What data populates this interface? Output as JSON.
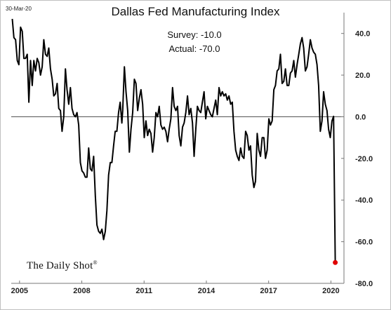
{
  "chart_data": {
    "type": "line",
    "date_stamp": "30-Mar-20",
    "title": "Dallas Fed Manufacturing Index",
    "xlim": [
      2004.6,
      2020.9
    ],
    "ylim": [
      -80,
      50
    ],
    "x_ticks": [
      2005,
      2008,
      2011,
      2014,
      2017,
      2020
    ],
    "x_tick_labels": [
      "2005",
      "2008",
      "2011",
      "2014",
      "2017",
      "2020"
    ],
    "y_ticks": [
      40,
      20,
      0,
      -20,
      -40,
      -60,
      -80
    ],
    "y_tick_labels": [
      "40.0",
      "20.0",
      "0.0",
      "-20.0",
      "-40.0",
      "-60.0",
      "-80.0"
    ],
    "zero_line": true,
    "grid": false,
    "annotations": [
      {
        "label": "Survey:",
        "value": "-10.0"
      },
      {
        "label": "Actual:",
        "value": "-70.0"
      }
    ],
    "highlight_point": {
      "x": 2020.21,
      "y": -70.0,
      "color": "#e00000"
    },
    "line_color": "#000000",
    "series": [
      {
        "points": [
          [
            2004.65,
            47
          ],
          [
            2004.73,
            38
          ],
          [
            2004.81,
            37
          ],
          [
            2004.89,
            27
          ],
          [
            2004.97,
            25
          ],
          [
            2005.05,
            43
          ],
          [
            2005.13,
            41
          ],
          [
            2005.21,
            28
          ],
          [
            2005.29,
            28
          ],
          [
            2005.37,
            30
          ],
          [
            2005.45,
            7
          ],
          [
            2005.53,
            27
          ],
          [
            2005.61,
            15
          ],
          [
            2005.69,
            27
          ],
          [
            2005.77,
            22
          ],
          [
            2005.85,
            28
          ],
          [
            2005.93,
            26
          ],
          [
            2006.01,
            20
          ],
          [
            2006.09,
            24
          ],
          [
            2006.17,
            37
          ],
          [
            2006.25,
            30
          ],
          [
            2006.33,
            29
          ],
          [
            2006.41,
            33
          ],
          [
            2006.49,
            23
          ],
          [
            2006.57,
            18
          ],
          [
            2006.65,
            10
          ],
          [
            2006.73,
            11
          ],
          [
            2006.81,
            16
          ],
          [
            2006.89,
            4
          ],
          [
            2006.97,
            3
          ],
          [
            2007.05,
            -7
          ],
          [
            2007.13,
            0
          ],
          [
            2007.21,
            23
          ],
          [
            2007.29,
            13
          ],
          [
            2007.37,
            6
          ],
          [
            2007.45,
            14
          ],
          [
            2007.53,
            4
          ],
          [
            2007.61,
            1
          ],
          [
            2007.69,
            0
          ],
          [
            2007.77,
            2
          ],
          [
            2007.85,
            -4
          ],
          [
            2007.93,
            -22
          ],
          [
            2008.01,
            -26
          ],
          [
            2008.09,
            -27
          ],
          [
            2008.17,
            -29
          ],
          [
            2008.25,
            -29
          ],
          [
            2008.33,
            -15
          ],
          [
            2008.41,
            -25
          ],
          [
            2008.49,
            -26
          ],
          [
            2008.57,
            -19
          ],
          [
            2008.65,
            -38
          ],
          [
            2008.73,
            -52
          ],
          [
            2008.81,
            -55
          ],
          [
            2008.89,
            -56
          ],
          [
            2008.97,
            -54
          ],
          [
            2009.05,
            -59
          ],
          [
            2009.13,
            -55
          ],
          [
            2009.21,
            -45
          ],
          [
            2009.29,
            -28
          ],
          [
            2009.37,
            -22
          ],
          [
            2009.45,
            -22
          ],
          [
            2009.53,
            -14
          ],
          [
            2009.61,
            -7
          ],
          [
            2009.69,
            -7
          ],
          [
            2009.77,
            2
          ],
          [
            2009.85,
            7
          ],
          [
            2009.93,
            -3
          ],
          [
            2009.97,
            3
          ],
          [
            2010.05,
            24
          ],
          [
            2010.13,
            12
          ],
          [
            2010.21,
            3
          ],
          [
            2010.29,
            -17
          ],
          [
            2010.37,
            -6
          ],
          [
            2010.45,
            2
          ],
          [
            2010.53,
            18
          ],
          [
            2010.61,
            16
          ],
          [
            2010.69,
            3
          ],
          [
            2010.77,
            9
          ],
          [
            2010.85,
            13
          ],
          [
            2010.93,
            6
          ],
          [
            2011.01,
            -10
          ],
          [
            2011.09,
            -2
          ],
          [
            2011.17,
            -9
          ],
          [
            2011.25,
            -6
          ],
          [
            2011.33,
            -8
          ],
          [
            2011.41,
            -17
          ],
          [
            2011.49,
            -10
          ],
          [
            2011.57,
            2
          ],
          [
            2011.65,
            0
          ],
          [
            2011.73,
            5
          ],
          [
            2011.81,
            -4
          ],
          [
            2011.89,
            -6
          ],
          [
            2011.97,
            -5
          ],
          [
            2012.05,
            -7
          ],
          [
            2012.13,
            -12
          ],
          [
            2012.21,
            -6
          ],
          [
            2012.29,
            -1
          ],
          [
            2012.37,
            14
          ],
          [
            2012.45,
            5
          ],
          [
            2012.53,
            3
          ],
          [
            2012.61,
            5
          ],
          [
            2012.69,
            -9
          ],
          [
            2012.77,
            -14
          ],
          [
            2012.85,
            -5
          ],
          [
            2012.93,
            -3
          ],
          [
            2013.01,
            2
          ],
          [
            2013.09,
            10
          ],
          [
            2013.17,
            1
          ],
          [
            2013.25,
            4
          ],
          [
            2013.33,
            -3
          ],
          [
            2013.41,
            -19
          ],
          [
            2013.49,
            -6
          ],
          [
            2013.57,
            5
          ],
          [
            2013.65,
            3
          ],
          [
            2013.73,
            2
          ],
          [
            2013.81,
            7
          ],
          [
            2013.89,
            12
          ],
          [
            2013.97,
            -1
          ],
          [
            2014.05,
            5
          ],
          [
            2014.13,
            3
          ],
          [
            2014.21,
            1
          ],
          [
            2014.29,
            0
          ],
          [
            2014.37,
            4
          ],
          [
            2014.45,
            8
          ],
          [
            2014.53,
            1
          ],
          [
            2014.61,
            14
          ],
          [
            2014.69,
            10
          ],
          [
            2014.77,
            12
          ],
          [
            2014.85,
            10
          ],
          [
            2014.93,
            11
          ],
          [
            2015.01,
            8
          ],
          [
            2015.09,
            10
          ],
          [
            2015.17,
            6
          ],
          [
            2015.25,
            7
          ],
          [
            2015.33,
            -7
          ],
          [
            2015.41,
            -16
          ],
          [
            2015.49,
            -19
          ],
          [
            2015.57,
            -21
          ],
          [
            2015.65,
            -15
          ],
          [
            2015.73,
            -19
          ],
          [
            2015.81,
            -20
          ],
          [
            2015.89,
            -7
          ],
          [
            2015.97,
            -9
          ],
          [
            2016.05,
            -16
          ],
          [
            2016.13,
            -14
          ],
          [
            2016.21,
            -28
          ],
          [
            2016.29,
            -34
          ],
          [
            2016.37,
            -31
          ],
          [
            2016.45,
            -8
          ],
          [
            2016.53,
            -16
          ],
          [
            2016.61,
            -19
          ],
          [
            2016.69,
            -10
          ],
          [
            2016.77,
            -10
          ],
          [
            2016.85,
            -20
          ],
          [
            2016.93,
            -16
          ],
          [
            2017.01,
            -1
          ],
          [
            2017.09,
            -4
          ],
          [
            2017.17,
            -2
          ],
          [
            2017.25,
            13
          ],
          [
            2017.33,
            15
          ],
          [
            2017.41,
            22
          ],
          [
            2017.49,
            23
          ],
          [
            2017.57,
            30
          ],
          [
            2017.65,
            16
          ],
          [
            2017.73,
            17
          ],
          [
            2017.81,
            23
          ],
          [
            2017.89,
            15
          ],
          [
            2017.97,
            15
          ],
          [
            2018.05,
            21
          ],
          [
            2018.13,
            22
          ],
          [
            2018.21,
            27
          ],
          [
            2018.29,
            19
          ],
          [
            2018.37,
            25
          ],
          [
            2018.45,
            30
          ],
          [
            2018.53,
            35
          ],
          [
            2018.61,
            38
          ],
          [
            2018.69,
            33
          ],
          [
            2018.77,
            22
          ],
          [
            2018.85,
            24
          ],
          [
            2018.93,
            30
          ],
          [
            2019.01,
            37
          ],
          [
            2019.09,
            33
          ],
          [
            2019.17,
            31
          ],
          [
            2019.25,
            30
          ],
          [
            2019.33,
            25
          ],
          [
            2019.41,
            15
          ],
          [
            2019.49,
            -7
          ],
          [
            2019.57,
            -2
          ],
          [
            2019.65,
            12
          ],
          [
            2019.73,
            6
          ],
          [
            2019.81,
            3
          ],
          [
            2019.89,
            -6
          ],
          [
            2019.97,
            -10
          ],
          [
            2020.05,
            -2
          ],
          [
            2020.13,
            0.2
          ],
          [
            2020.21,
            -70
          ]
        ]
      }
    ]
  }
}
